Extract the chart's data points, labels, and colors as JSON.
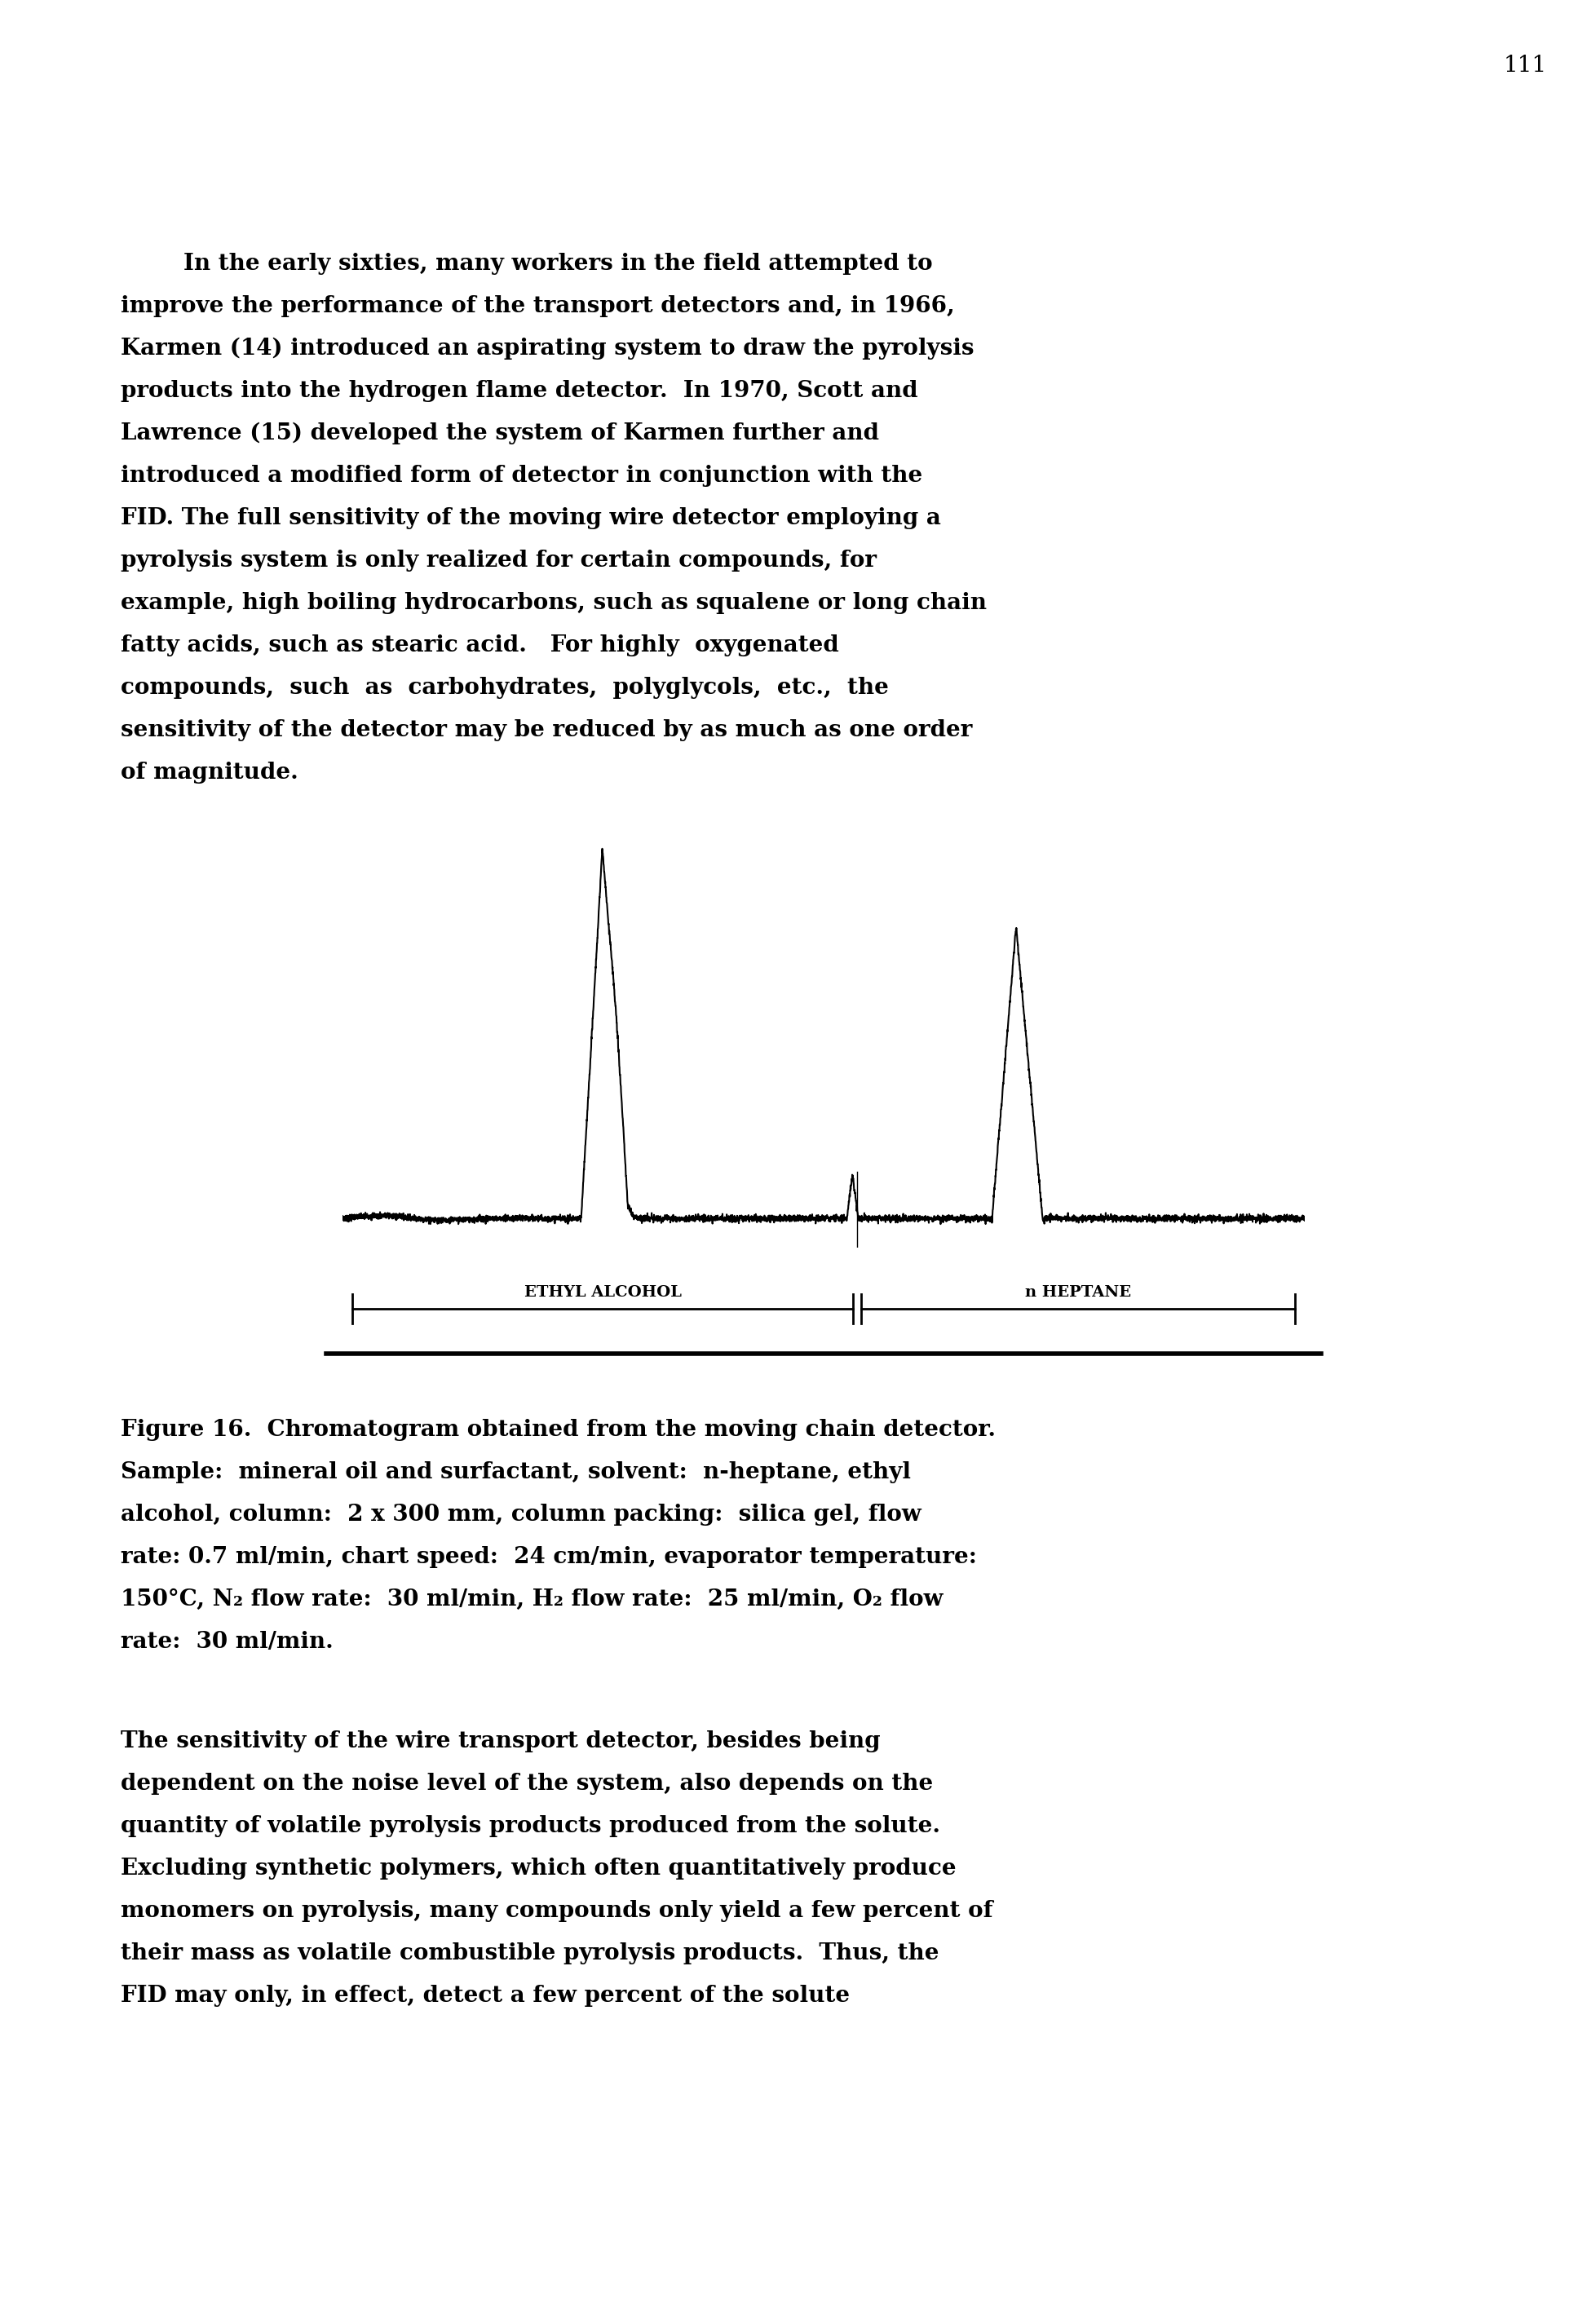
{
  "page_number": "111",
  "top_paragraph_lines": [
    "        In the early sixties, many workers in the field attempted to",
    "improve the performance of the transport detectors and, in 1966,",
    "Karmen (14) introduced an aspirating system to draw the pyrolysis",
    "products into the hydrogen flame detector.  In 1970, Scott and",
    "Lawrence (15) developed the system of Karmen further and",
    "introduced a modified form of detector in conjunction with the",
    "FID. The full sensitivity of the moving wire detector employing a",
    "pyrolysis system is only realized for certain compounds, for",
    "example, high boiling hydrocarbons, such as squalene or long chain",
    "fatty acids, such as stearic acid.   For highly  oxygenated",
    "compounds,  such  as  carbohydrates,  polyglycols,  etc.,  the",
    "sensitivity of the detector may be reduced by as much as one order",
    "of magnitude."
  ],
  "bottom_paragraph_lines": [
    "The sensitivity of the wire transport detector, besides being",
    "dependent on the noise level of the system, also depends on the",
    "quantity of volatile pyrolysis products produced from the solute.",
    "Excluding synthetic polymers, which often quantitatively produce",
    "monomers on pyrolysis, many compounds only yield a few percent of",
    "their mass as volatile combustible pyrolysis products.  Thus, the",
    "FID may only, in effect, detect a few percent of the solute"
  ],
  "figure_caption_lines": [
    "Figure 16.  Chromatogram obtained from the moving chain detector.",
    "Sample:  mineral oil and surfactant, solvent:  n-heptane, ethyl",
    "alcohol, column:  2 x 300 mm, column packing:  silica gel, flow",
    "rate: 0.7 ml/min, chart speed:  24 cm/min, evaporator temperature:",
    "150°C, N₂ flow rate:  30 ml/min, H₂ flow rate:  25 ml/min, O₂ flow",
    "rate:  30 ml/min."
  ],
  "label_ethyl": "ETHYL ALCOHOL",
  "label_heptane": "n HEPTANE",
  "bg_color": "#ffffff",
  "text_color": "#000000",
  "chromatogram_color": "#000000",
  "text_fontsize": 20,
  "caption_fontsize": 20,
  "page_num_fontsize": 20,
  "label_fontsize": 14
}
